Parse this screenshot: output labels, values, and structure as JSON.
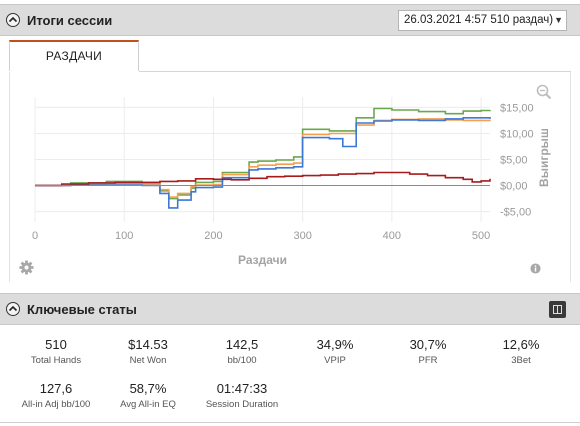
{
  "session_panel": {
    "title": "Итоги сессии",
    "selected_session": "26.03.2021 4:57 510 раздач)"
  },
  "tabs": [
    {
      "label": "РАЗДАЧИ"
    }
  ],
  "chart_data": {
    "type": "line",
    "xlabel": "Раздачи",
    "ylabel": "Выигрыш",
    "xlim": [
      0,
      510
    ],
    "ylim": [
      -7,
      17
    ],
    "x_ticks": [
      0,
      100,
      200,
      300,
      400,
      500
    ],
    "y_ticks": [
      -5,
      0,
      5,
      10,
      15
    ],
    "y_tick_labels": [
      "-$5,00",
      "$0,00",
      "$5,00",
      "$10,00",
      "$15,00"
    ],
    "grid": true,
    "series": [
      {
        "color": "#6aa84f",
        "x": [
          0,
          40,
          80,
          120,
          140,
          150,
          160,
          175,
          180,
          200,
          210,
          240,
          250,
          270,
          290,
          300,
          330,
          360,
          380,
          400,
          430,
          460,
          480,
          500,
          510
        ],
        "y": [
          0,
          0.5,
          0.8,
          0.6,
          -1.0,
          -2.5,
          -1.8,
          -0.5,
          0.6,
          0.8,
          2.5,
          4.5,
          4.7,
          4.9,
          5.5,
          10.8,
          10.5,
          13.0,
          14.8,
          14.5,
          14.2,
          13.8,
          14.3,
          14.4,
          14.5
        ]
      },
      {
        "color": "#f6a04d",
        "x": [
          0,
          40,
          80,
          120,
          140,
          150,
          160,
          175,
          180,
          200,
          210,
          240,
          250,
          270,
          290,
          300,
          330,
          360,
          380,
          400,
          430,
          460,
          480,
          500,
          510
        ],
        "y": [
          0,
          0.2,
          0.4,
          0.3,
          -0.8,
          -2.2,
          -1.5,
          -0.2,
          0.1,
          0.2,
          2.1,
          3.6,
          3.9,
          4.1,
          4.3,
          9.8,
          10.0,
          11.6,
          12.5,
          12.7,
          12.8,
          12.6,
          12.5,
          12.5,
          12.4
        ]
      },
      {
        "color": "#3c78d8",
        "x": [
          0,
          40,
          80,
          120,
          140,
          150,
          160,
          175,
          180,
          200,
          210,
          240,
          250,
          270,
          290,
          300,
          330,
          345,
          360,
          380,
          400,
          430,
          460,
          480,
          500,
          510
        ],
        "y": [
          0,
          0.1,
          0.1,
          0.0,
          -1.5,
          -4.3,
          -2.8,
          -1.2,
          -0.4,
          -0.3,
          1.5,
          3.0,
          3.2,
          3.4,
          3.6,
          9.2,
          9.0,
          7.5,
          12.0,
          12.4,
          12.6,
          12.5,
          12.8,
          13.0,
          13.0,
          12.8
        ]
      },
      {
        "color": "#a61c1c",
        "x": [
          0,
          30,
          60,
          90,
          120,
          140,
          160,
          180,
          200,
          220,
          240,
          260,
          280,
          300,
          320,
          340,
          360,
          380,
          400,
          420,
          440,
          460,
          480,
          490,
          500,
          510
        ],
        "y": [
          0,
          0.3,
          0.5,
          0.6,
          0.6,
          0.8,
          0.9,
          1.3,
          1.2,
          1.1,
          1.4,
          1.7,
          1.8,
          1.9,
          2.0,
          2.2,
          2.3,
          2.5,
          2.5,
          2.2,
          1.9,
          1.5,
          1.2,
          0.7,
          0.9,
          1.3
        ]
      },
      {
        "color": "#8a8a8a",
        "x": [
          0,
          510
        ],
        "y": [
          0,
          0
        ]
      }
    ]
  },
  "keystats_panel": {
    "title": "Ключевые статы"
  },
  "stats": [
    {
      "value": "510",
      "label": "Total Hands"
    },
    {
      "value": "$14.53",
      "label": "Net Won"
    },
    {
      "value": "142,5",
      "label": "bb/100"
    },
    {
      "value": "34,9%",
      "label": "VPIP"
    },
    {
      "value": "30,7%",
      "label": "PFR"
    },
    {
      "value": "12,6%",
      "label": "3Bet"
    },
    {
      "value": "127,6",
      "label": "All-in Adj bb/100"
    },
    {
      "value": "58,7%",
      "label": "Avg All-in EQ"
    },
    {
      "value": "01:47:33",
      "label": "Session Duration"
    }
  ],
  "icons": {
    "zoom": "zoom-icon",
    "settings": "gear-icon",
    "info": "info-icon",
    "collapse": "chevron-up-icon",
    "dropdown": "chevron-down-icon",
    "grid": "grid-view-icon"
  }
}
